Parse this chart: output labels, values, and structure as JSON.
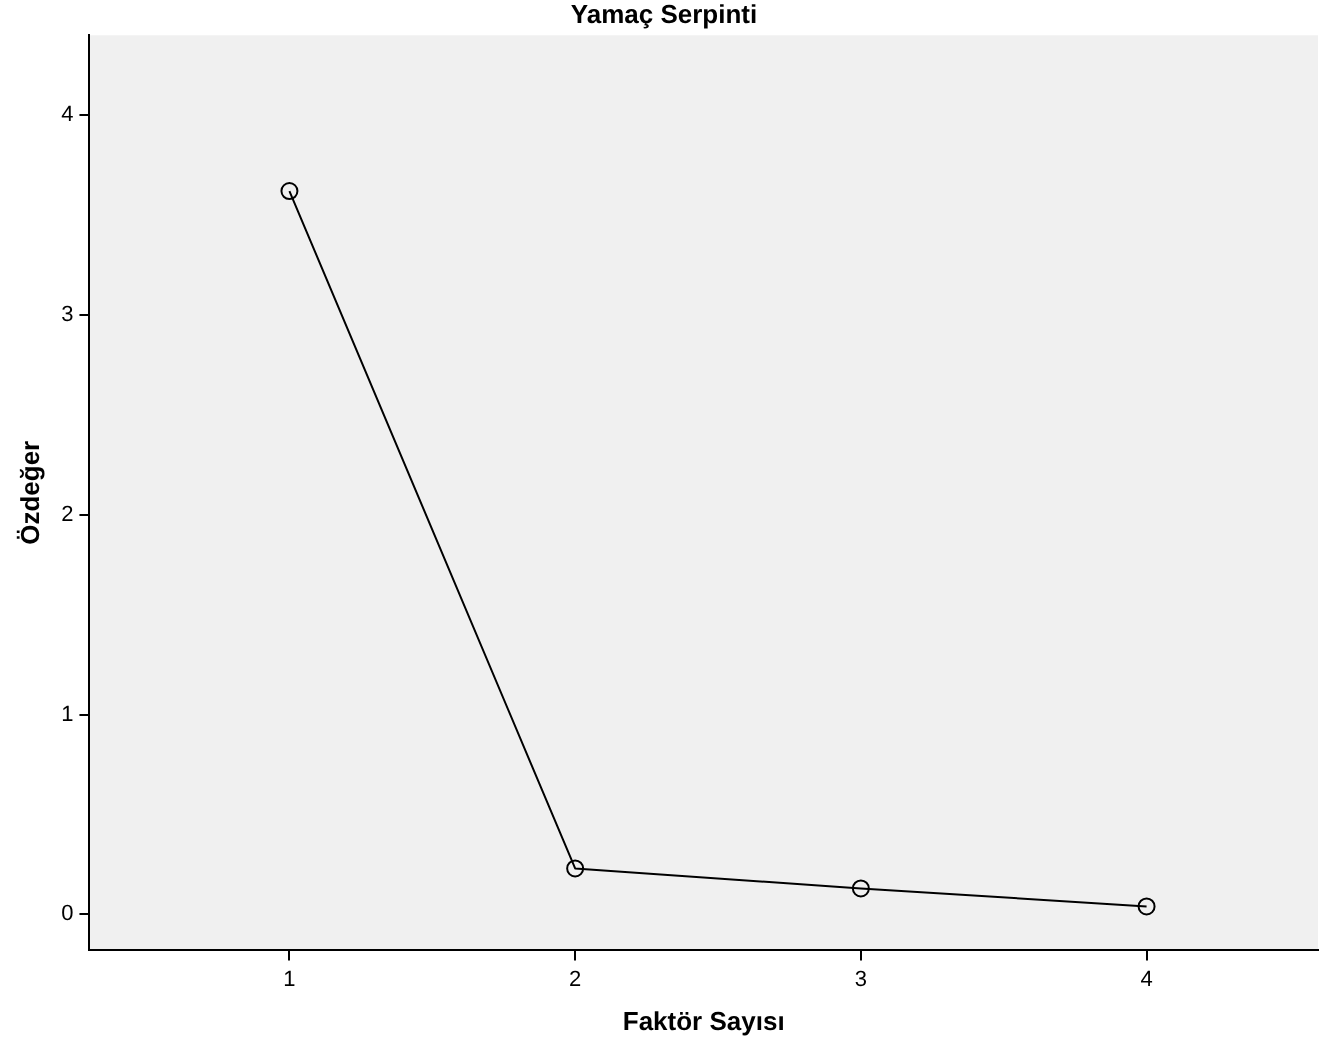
{
  "chart_data": {
    "type": "line",
    "title": "Yamaç Serpinti",
    "xlabel": "Faktör Sayısı",
    "ylabel": "Özdeğer",
    "x": [
      1,
      2,
      3,
      4
    ],
    "series": [
      {
        "color": "#000000",
        "values": [
          3.62,
          0.23,
          0.13,
          0.04
        ]
      }
    ],
    "xlim": [
      0.3,
      4.6
    ],
    "ylim": [
      -0.18,
      4.4
    ],
    "xticks": [
      1,
      2,
      3,
      4
    ],
    "yticks": [
      0,
      1,
      2,
      3,
      4
    ],
    "grid": false,
    "legend": false,
    "marker": "circle",
    "line_style": "solid"
  }
}
